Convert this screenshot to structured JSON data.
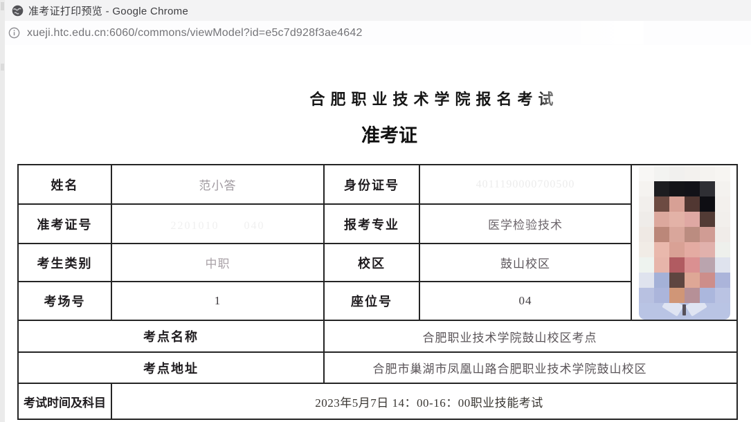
{
  "window": {
    "title": "准考证打印预览 - Google Chrome",
    "url": "xueji.htc.edu.cn:6060/commons/viewModel?id=e5c7d928f3ae4642"
  },
  "document": {
    "title": "合肥职业技术学院报名考试",
    "subtitle": "准考证"
  },
  "ticket": {
    "name_label": "姓名",
    "name": "范小答",
    "id_label": "身份证号",
    "id_number": "4011190000700500",
    "ticket_no_label": "准考证号",
    "ticket_no": "2201010　　040",
    "major_label": "报考专业",
    "major": "医学检验技术",
    "category_label": "考生类别",
    "category": "中职",
    "campus_label": "校区",
    "campus": "鼓山校区",
    "room_label": "考场号",
    "room": "1",
    "seat_label": "座位号",
    "seat": "04",
    "site_name_label": "考点名称",
    "site_name": "合肥职业技术学院鼓山校区考点",
    "site_addr_label": "考点地址",
    "site_addr": "合肥市巢湖市凤凰山路合肥职业技术学院鼓山校区",
    "time_label": "考试时间及科目",
    "time_value": "2023年5月7日 14：00-16：00职业技能考试"
  },
  "icons": {
    "favicon": "globe-icon",
    "url_info": "info-icon"
  },
  "colors": {
    "titlebar_bg": "#f3f3f4",
    "url_text": "#747478",
    "table_border": "#242424",
    "shirt": "#b9c4e4"
  },
  "photo": {
    "grid": [
      [
        "#f8f7f5",
        "#f3f3f1",
        "#f1f0ee",
        "#f3f1ee",
        "#f5f3f0",
        "#f7f5f2"
      ],
      [
        "#f5f3f0",
        "#1d1d20",
        "#141418",
        "#121218",
        "#2f2f34",
        "#f4f2ef"
      ],
      [
        "#f2efec",
        "#6d4b42",
        "#d7a095",
        "#513732",
        "#0e0e13",
        "#f3f0ed"
      ],
      [
        "#efece9",
        "#dca89d",
        "#e3b2a7",
        "#dfa8a3",
        "#523b35",
        "#f2efec"
      ],
      [
        "#efe9e4",
        "#bb8779",
        "#d9a69b",
        "#bb8c80",
        "#d09c94",
        "#f0ece9"
      ],
      [
        "#f1ece6",
        "#e9b8ac",
        "#d9a195",
        "#e4aba2",
        "#e1b1ac",
        "#eef0ec"
      ],
      [
        "#eef3ef",
        "#e7b5aa",
        "#b15b61",
        "#da9091",
        "#baa4ae",
        "#dfe3ee"
      ],
      [
        "#dfe3ee",
        "#a4b1d7",
        "#5e4540",
        "#dea796",
        "#cd8e8b",
        "#abb4da"
      ],
      [
        "#b8c1e1",
        "#abb5db",
        "#d09677",
        "#b69097",
        "#abb7dd",
        "#bac3e3"
      ]
    ]
  }
}
